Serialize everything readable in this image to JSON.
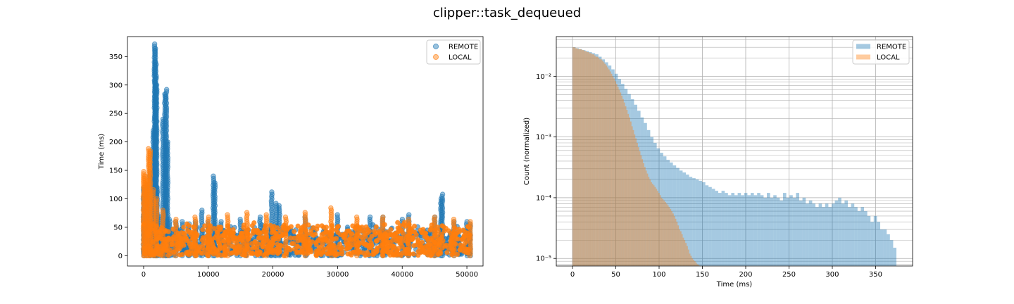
{
  "figure": {
    "suptitle": "clipper::task_dequeued"
  },
  "colors": {
    "remote": "#1f77b4",
    "local": "#ff7f0e"
  },
  "chart_data": [
    {
      "type": "scatter",
      "xlabel": "",
      "ylabel": "Time (ms)",
      "xlim": [
        -2500,
        52500
      ],
      "ylim": [
        -18,
        385
      ],
      "xticks": [
        0,
        10000,
        20000,
        30000,
        40000,
        50000
      ],
      "xtick_labels": [
        "0",
        "10000",
        "20000",
        "30000",
        "40000",
        "50000"
      ],
      "yticks": [
        0,
        50,
        100,
        150,
        200,
        250,
        300,
        350
      ],
      "ytick_labels": [
        "0",
        "50",
        "100",
        "150",
        "200",
        "250",
        "300",
        "350"
      ],
      "grid": false,
      "legend": {
        "position": "top-right",
        "entries": [
          "REMOTE",
          "LOCAL"
        ]
      },
      "series": [
        {
          "name": "REMOTE",
          "color": "#1f77b4",
          "x": [
            0,
            500,
            1000,
            1500,
            1700,
            1800,
            1900,
            2000,
            2100,
            2500,
            3000,
            3300,
            3500,
            3700,
            4000,
            5000,
            6000,
            7000,
            8000,
            9000,
            10000,
            10800,
            11000,
            12000,
            15000,
            18000,
            19800,
            20500,
            21000,
            25000,
            30000,
            35000,
            37000,
            40000,
            41000,
            45000,
            46000,
            46200,
            48000,
            50000,
            50500
          ],
          "y": [
            120,
            125,
            150,
            220,
            374,
            365,
            340,
            300,
            120,
            70,
            240,
            285,
            293,
            200,
            65,
            60,
            62,
            58,
            60,
            80,
            60,
            140,
            130,
            60,
            65,
            70,
            112,
            95,
            88,
            70,
            75,
            68,
            70,
            65,
            72,
            70,
            100,
            108,
            60,
            62,
            58
          ],
          "band_max": 55
        },
        {
          "name": "LOCAL",
          "color": "#ff7f0e",
          "x": [
            0,
            200,
            500,
            800,
            1000,
            1500,
            2000,
            3000,
            5000,
            8000,
            10000,
            13000,
            16000,
            19000,
            22000,
            25000,
            29000,
            33000,
            37000,
            41000,
            45000,
            48000,
            50500
          ],
          "y": [
            150,
            142,
            135,
            190,
            185,
            118,
            100,
            80,
            66,
            68,
            70,
            73,
            77,
            74,
            70,
            76,
            86,
            70,
            68,
            66,
            68,
            64,
            60
          ],
          "band_max": 60
        }
      ]
    },
    {
      "type": "bar",
      "subtype": "histogram",
      "xlabel": "Time (ms)",
      "ylabel": "Count (normalized)",
      "xlim": [
        -18.7,
        392.7
      ],
      "ylim": [
        7.5e-06,
        0.045
      ],
      "yscale": "log",
      "xticks": [
        0,
        50,
        100,
        150,
        200,
        250,
        300,
        350
      ],
      "xtick_labels": [
        "0",
        "50",
        "100",
        "150",
        "200",
        "250",
        "300",
        "350"
      ],
      "yticks": [
        1e-05,
        0.0001,
        0.001,
        0.01
      ],
      "ytick_labels": [
        "10⁻⁵",
        "10⁻⁴",
        "10⁻³",
        "10⁻²"
      ],
      "grid": true,
      "legend": {
        "position": "top-right",
        "entries": [
          "REMOTE",
          "LOCAL"
        ]
      },
      "series": [
        {
          "name": "REMOTE",
          "color": "#1f77b4",
          "bin_width": 3.74,
          "x_start": 0,
          "values": [
            0.03,
            0.029,
            0.028,
            0.027,
            0.026,
            0.025,
            0.024,
            0.023,
            0.021,
            0.019,
            0.017,
            0.015,
            0.013,
            0.011,
            0.009,
            0.0075,
            0.0062,
            0.0051,
            0.0042,
            0.0034,
            0.0027,
            0.0021,
            0.0017,
            0.0013,
            0.001,
            0.0008,
            0.00065,
            0.00055,
            0.00048,
            0.00042,
            0.00038,
            0.00034,
            0.00031,
            0.00028,
            0.00026,
            0.00024,
            0.00022,
            0.00021,
            0.0002,
            0.00019,
            0.00018,
            0.00016,
            0.00015,
            0.00014,
            0.00013,
            0.00012,
            0.00013,
            0.00012,
            0.00011,
            0.00012,
            0.00011,
            0.00012,
            0.00011,
            0.00012,
            0.00011,
            0.00012,
            0.00011,
            0.00012,
            0.00011,
            0.0001,
            0.00012,
            0.0001,
            0.00011,
            0.0001,
            9e-05,
            0.00012,
            0.0001,
            0.00011,
            0.0001,
            0.00012,
            9e-05,
            0.0001,
            8e-05,
            9e-05,
            8e-05,
            7e-05,
            8e-05,
            7e-05,
            8e-05,
            7e-05,
            8e-05,
            9e-05,
            0.0001,
            8e-05,
            9e-05,
            7e-05,
            8e-05,
            7e-05,
            6e-05,
            7e-05,
            6e-05,
            5e-05,
            4e-05,
            5e-05,
            4e-05,
            3e-05,
            3e-05,
            2.5e-05,
            2e-05,
            1.5e-05
          ]
        },
        {
          "name": "LOCAL",
          "color": "#ff7f0e",
          "bin_width": 1.48,
          "x_start": 0,
          "values": [
            0.03,
            0.03,
            0.029,
            0.029,
            0.028,
            0.028,
            0.028,
            0.027,
            0.027,
            0.026,
            0.026,
            0.025,
            0.025,
            0.024,
            0.024,
            0.023,
            0.023,
            0.022,
            0.021,
            0.021,
            0.02,
            0.019,
            0.019,
            0.018,
            0.017,
            0.016,
            0.015,
            0.014,
            0.013,
            0.012,
            0.011,
            0.01,
            0.0092,
            0.0083,
            0.0075,
            0.0067,
            0.006,
            0.0054,
            0.0048,
            0.0042,
            0.0037,
            0.0032,
            0.0028,
            0.0024,
            0.0021,
            0.0018,
            0.0015,
            0.0013,
            0.0011,
            0.00095,
            0.0008,
            0.00068,
            0.00058,
            0.0005,
            0.00043,
            0.00037,
            0.00032,
            0.00028,
            0.00025,
            0.00022,
            0.0002,
            0.00018,
            0.00017,
            0.00016,
            0.00015,
            0.00014,
            0.00013,
            0.00012,
            0.00011,
            0.0001,
            9.5e-05,
            9e-05,
            8.5e-05,
            8e-05,
            7.5e-05,
            7e-05,
            6.5e-05,
            6e-05,
            5.5e-05,
            5e-05,
            4.5e-05,
            4e-05,
            3.5e-05,
            3e-05,
            2.8e-05,
            2.5e-05,
            2.2e-05,
            2e-05,
            1.8e-05,
            1.6e-05,
            1.4e-05,
            1.2e-05,
            1.1e-05,
            1e-05,
            9.5e-06,
            9e-06,
            8.5e-06,
            8e-06,
            7.8e-06,
            7.6e-06
          ]
        }
      ]
    }
  ]
}
